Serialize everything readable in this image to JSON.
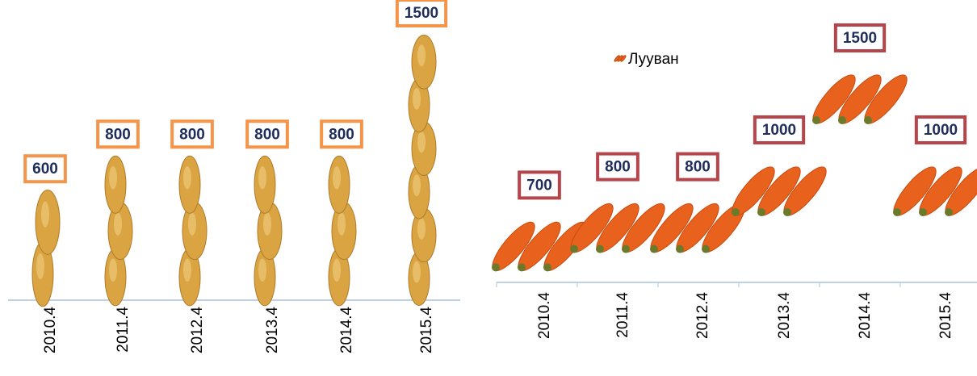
{
  "chart_data": [
    {
      "type": "bar",
      "categories": [
        "2010.4",
        "2011.4",
        "2012.4",
        "2013.4",
        "2014.4",
        "2015.4"
      ],
      "values": [
        600,
        800,
        800,
        800,
        800,
        1500
      ],
      "color": "#d9a441"
    },
    {
      "type": "line",
      "categories": [
        "2010.4",
        "2011.4",
        "2012.4",
        "2013.4",
        "2014.4",
        "2015.4"
      ],
      "series": [
        {
          "name": "Лууван",
          "color": "#e8621e",
          "values": [
            700,
            800,
            800,
            1000,
            1500,
            1000
          ]
        }
      ]
    }
  ]
}
